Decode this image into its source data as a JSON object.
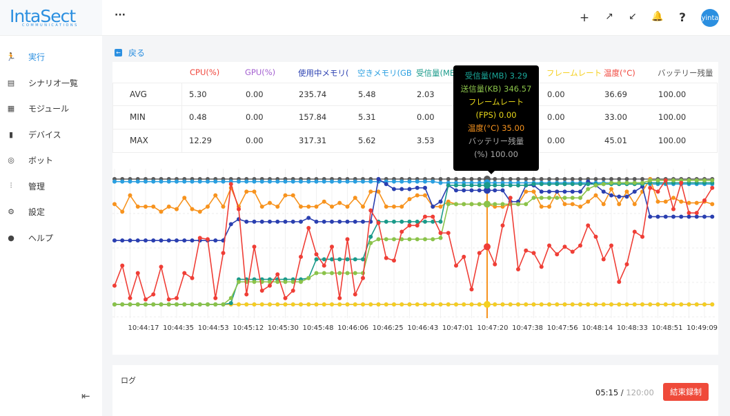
{
  "logo": {
    "name": "IntaSect",
    "subtitle": "COMMUNICATIONS"
  },
  "sidebar": {
    "items": [
      {
        "label": "実行",
        "icon": "run-icon",
        "glyph": "🏃"
      },
      {
        "label": "シナリオ一覧",
        "icon": "list-icon",
        "glyph": "▤"
      },
      {
        "label": "モジュール",
        "icon": "grid-icon",
        "glyph": "▦"
      },
      {
        "label": "デバイス",
        "icon": "phone-icon",
        "glyph": "▮"
      },
      {
        "label": "ボット",
        "icon": "bot-icon",
        "glyph": "◎"
      },
      {
        "label": "管理",
        "icon": "sliders-icon",
        "glyph": "⫶"
      },
      {
        "label": "設定",
        "icon": "gear-icon",
        "glyph": "⚙"
      },
      {
        "label": "ヘルプ",
        "icon": "info-icon",
        "glyph": "●"
      }
    ]
  },
  "topbar": {
    "more": "···",
    "avatar": "yinta"
  },
  "back_label": "戻る",
  "stats": {
    "headers": [
      "CPU(%)",
      "GPU(%)",
      "使用中メモリ(",
      "空きメモリ(GB",
      "受信量(MB)",
      "送信量(KB)",
      "フレームレート",
      "温度(°C)",
      "バッテリー残量"
    ],
    "header_colors": [
      "#f0463c",
      "#a35fd0",
      "#2a3fb0",
      "#2a9fe0",
      "#1a9a8a",
      "#8bc34a",
      "#f5d020",
      "#f0463c",
      "#555555"
    ],
    "rows": [
      {
        "label": "AVG",
        "values": [
          "5.30",
          "0.00",
          "235.74",
          "5.48",
          "2.03",
          "",
          "0.00",
          "36.69",
          "100.00"
        ]
      },
      {
        "label": "MIN",
        "values": [
          "0.48",
          "0.00",
          "157.84",
          "5.31",
          "0.00",
          "",
          "0.00",
          "33.00",
          "100.00"
        ]
      },
      {
        "label": "MAX",
        "values": [
          "12.29",
          "0.00",
          "317.31",
          "5.62",
          "3.53",
          "",
          "0.00",
          "45.01",
          "100.00"
        ]
      }
    ]
  },
  "tooltip": {
    "lines": [
      {
        "text": "受信量(MB) 3.29",
        "color": "#1aa89a"
      },
      {
        "text": "送信量(KB) 346.57",
        "color": "#8bc34a"
      },
      {
        "text": "フレームレート",
        "color": "#e8d81a"
      },
      {
        "text": "(FPS) 0.00",
        "color": "#e8d81a"
      },
      {
        "text": "温度(°C) 35.00",
        "color": "#f7931e"
      },
      {
        "text": "バッテリー残量",
        "color": "#aaaaaa"
      },
      {
        "text": "(%) 100.00",
        "color": "#aaaaaa"
      }
    ]
  },
  "chart_data": {
    "type": "line",
    "title": "",
    "xlabel": "",
    "ylabel": "",
    "y_note": "normalized, axis hidden",
    "ylim": [
      0,
      100
    ],
    "hover_index": 48,
    "x_ticks": [
      "10:44:17",
      "10:44:35",
      "10:44:53",
      "10:45:12",
      "10:45:30",
      "10:45:48",
      "10:46:06",
      "10:46:25",
      "10:46:43",
      "10:47:01",
      "10:47:20",
      "10:47:38",
      "10:47:56",
      "10:48:14",
      "10:48:33",
      "10:48:51",
      "10:49:09"
    ],
    "series": [
      {
        "name": "GPU(%)",
        "color": "#a35fd0",
        "fill": [
          0,
          78
        ]
      },
      {
        "name": "フレームレート",
        "color": "#f5d020",
        "fill": [
          0,
          78
        ]
      },
      {
        "name": "バッテリー残量",
        "color": "#5a5a5a",
        "fill": [
          100,
          78
        ]
      },
      {
        "name": "空きメモリ",
        "color": "#2a9fe0",
        "segments": [
          [
            98,
            42
          ],
          [
            97,
            27
          ],
          [
            96,
            9
          ]
        ]
      },
      {
        "name": "温度(°C)",
        "color": "#f7931e",
        "values": [
          80,
          74,
          87,
          78,
          78,
          78,
          74,
          78,
          76,
          85,
          76,
          74,
          78,
          87,
          78,
          93,
          78,
          90,
          90,
          78,
          81,
          78,
          87,
          87,
          78,
          78,
          78,
          82,
          78,
          81,
          78,
          85,
          78,
          90,
          90,
          78,
          78,
          78,
          84,
          87,
          87,
          78,
          78,
          82,
          80,
          80,
          80,
          80,
          80,
          78,
          78,
          80,
          80,
          90,
          90,
          78,
          78,
          90,
          80,
          80,
          78,
          82,
          87,
          80,
          92,
          80,
          90,
          80,
          90,
          100,
          82,
          82,
          85,
          82,
          81,
          81,
          82,
          80
        ]
      },
      {
        "name": "使用中メモリ",
        "color": "#2a3fb0",
        "values": [
          51,
          51,
          51,
          51,
          51,
          51,
          51,
          51,
          51,
          51,
          51,
          51,
          51,
          51,
          51,
          64,
          68,
          66,
          66,
          66,
          66,
          66,
          66,
          66,
          66,
          69,
          66,
          66,
          66,
          66,
          66,
          66,
          66,
          66,
          100,
          96,
          92,
          92,
          92,
          93,
          93,
          78,
          82,
          95,
          91,
          91,
          91,
          91,
          91,
          91,
          91,
          82,
          82,
          95,
          95,
          90,
          90,
          90,
          90,
          90,
          90,
          98,
          95,
          90,
          87,
          86,
          86,
          90,
          94,
          70,
          70,
          70,
          70,
          70,
          70,
          70,
          70,
          70
        ]
      },
      {
        "name": "受信量(MB)",
        "color": "#1a9a8a",
        "values": [
          0,
          0,
          0,
          0,
          0,
          0,
          0,
          0,
          0,
          0,
          0,
          0,
          0,
          0,
          0,
          1,
          20,
          20,
          20,
          20,
          20,
          20,
          20,
          20,
          20,
          21,
          36,
          36,
          36,
          36,
          36,
          36,
          36,
          54,
          66,
          66,
          66,
          66,
          66,
          66,
          66,
          66,
          66,
          95,
          95,
          95,
          95,
          95,
          95,
          95,
          95,
          95,
          95,
          95,
          96,
          96,
          96,
          96,
          96,
          96,
          96,
          96,
          96,
          96,
          96,
          96,
          96,
          96,
          96,
          97,
          97,
          97,
          97,
          97,
          97,
          97,
          97,
          97
        ]
      },
      {
        "name": "送信量(KB)",
        "color": "#8bc34a",
        "values": [
          0,
          0,
          0,
          0,
          0,
          0,
          0,
          0,
          0,
          0,
          0,
          0,
          0,
          0,
          0,
          5,
          18,
          18,
          18,
          18,
          18,
          18,
          18,
          18,
          18,
          21,
          25,
          25,
          25,
          25,
          25,
          25,
          25,
          49,
          52,
          52,
          52,
          52,
          52,
          52,
          52,
          52,
          53,
          80,
          80,
          80,
          80,
          80,
          80,
          80,
          80,
          80,
          80,
          80,
          85,
          85,
          85,
          85,
          85,
          85,
          85,
          92,
          95,
          96,
          97,
          97,
          97,
          97,
          97,
          99,
          99,
          99,
          99,
          99,
          99,
          99,
          99,
          99
        ]
      },
      {
        "name": "CPU(%)",
        "color": "#ef3e36",
        "values": [
          15,
          31,
          5,
          25,
          4,
          8,
          30,
          4,
          5,
          25,
          21,
          53,
          52,
          5,
          41,
          96,
          76,
          8,
          46,
          11,
          15,
          24,
          5,
          11,
          38,
          61,
          40,
          31,
          46,
          5,
          52,
          8,
          21,
          75,
          65,
          37,
          35,
          58,
          63,
          63,
          70,
          70,
          57,
          57,
          31,
          38,
          12,
          41,
          46,
          32,
          63,
          85,
          28,
          43,
          41,
          30,
          47,
          40,
          46,
          42,
          47,
          63,
          54,
          36,
          47,
          18,
          32,
          58,
          54,
          93,
          90,
          99,
          76,
          97,
          73,
          73,
          83,
          93
        ]
      }
    ]
  },
  "log": {
    "title": "ログ",
    "elapsed": "05:15",
    "separator": " / ",
    "total": "120:00",
    "stop_label": "結束録制"
  }
}
